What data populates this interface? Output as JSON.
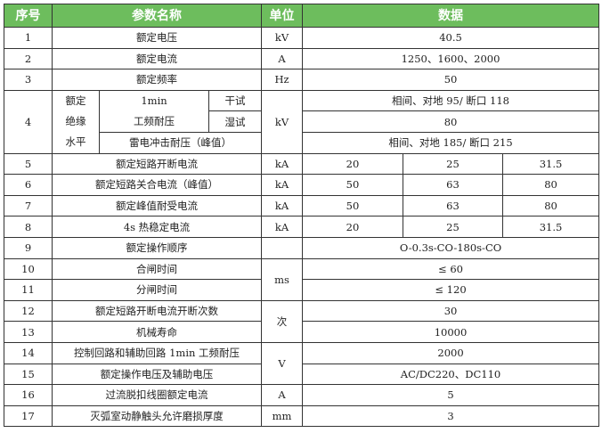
{
  "header": {
    "no": "序号",
    "name": "参数名称",
    "unit": "单位",
    "data": "数据"
  },
  "colors": {
    "header_bg": "#6dbd5d",
    "header_text": "#ffffff",
    "border": "#333333"
  },
  "rows": [
    {
      "no": "1",
      "name": "额定电压",
      "unit": "kV",
      "value": "40.5"
    },
    {
      "no": "2",
      "name": "额定电流",
      "unit": "A",
      "value": "1250、1600、2000"
    },
    {
      "no": "3",
      "name": "额定频率",
      "unit": "Hz",
      "value": "50"
    }
  ],
  "insulation": {
    "no": "4",
    "group": "额定绝缘水平",
    "group_lines": [
      "额定",
      "绝缘",
      "水平"
    ],
    "pf_line1": "1min",
    "pf_line2": "工频耐压",
    "dry": "干试",
    "wet": "湿试",
    "lightning": "雷电冲击耐压（峰值）",
    "unit": "kV",
    "dry_value": "相间、对地 95/ 断口 118",
    "wet_value": "80",
    "lightning_value": "相间、对地 185/ 断口 215"
  },
  "current_rows": [
    {
      "no": "5",
      "name": "额定短路开断电流",
      "unit": "kA",
      "values": [
        "20",
        "25",
        "31.5"
      ]
    },
    {
      "no": "6",
      "name": "额定短路关合电流（峰值）",
      "unit": "kA",
      "values": [
        "50",
        "63",
        "80"
      ]
    },
    {
      "no": "7",
      "name": "额定峰值耐受电流",
      "unit": "kA",
      "values": [
        "50",
        "63",
        "80"
      ]
    },
    {
      "no": "8",
      "name": "4s 热稳定电流",
      "unit": "kA",
      "values": [
        "20",
        "25",
        "31.5"
      ]
    }
  ],
  "rest": [
    {
      "no": "9",
      "name": "额定操作顺序",
      "unit": "",
      "value": "O-0.3s-CO-180s-CO"
    },
    {
      "no": "10",
      "name": "合闸时间",
      "unit": "ms",
      "value": "≤ 60"
    },
    {
      "no": "11",
      "name": "分闸时间",
      "value": "≤ 120"
    },
    {
      "no": "12",
      "name": "额定短路开断电流开断次数",
      "unit": "次",
      "value": "30"
    },
    {
      "no": "13",
      "name": "机械寿命",
      "value": "10000"
    },
    {
      "no": "14",
      "name": "控制回路和辅助回路 1min 工频耐压",
      "unit": "V",
      "value": "2000"
    },
    {
      "no": "15",
      "name": "额定操作电压及辅助电压",
      "value": "AC/DC220、DC110"
    },
    {
      "no": "16",
      "name": "过流脱扣线圈额定电流",
      "unit": "A",
      "value": "5"
    },
    {
      "no": "17",
      "name": "灭弧室动静触头允许磨损厚度",
      "unit": "mm",
      "value": "3"
    }
  ]
}
